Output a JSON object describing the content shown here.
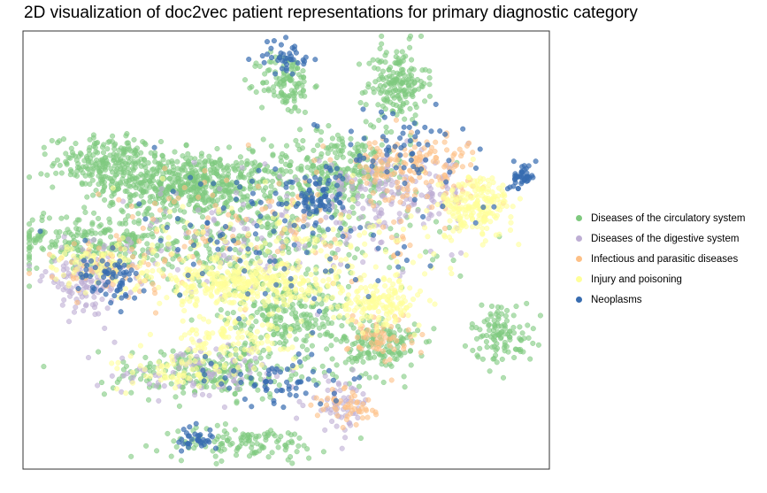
{
  "chart_data": {
    "type": "scatter",
    "title": "2D visualization of doc2vec patient representations for primary diagnostic category",
    "xlabel": "",
    "ylabel": "",
    "axes_visible": false,
    "grid": false,
    "legend_position": "right",
    "xlim": [
      0,
      100
    ],
    "ylim": [
      0,
      100
    ],
    "series": [
      {
        "name": "Diseases of the circulatory system",
        "color": "#7fc97f",
        "clusters": [
          {
            "cx": 32,
            "cy": 65,
            "sx": 8,
            "sy": 3.5,
            "n": 520
          },
          {
            "cx": 16,
            "cy": 70,
            "sx": 5,
            "sy": 3,
            "n": 220
          },
          {
            "cx": 71,
            "cy": 88,
            "sx": 2.8,
            "sy": 4.5,
            "n": 180
          },
          {
            "cx": 50,
            "cy": 88,
            "sx": 2.5,
            "sy": 3.5,
            "n": 110
          },
          {
            "cx": 60,
            "cy": 68,
            "sx": 7,
            "sy": 4.5,
            "n": 300
          },
          {
            "cx": 15,
            "cy": 52,
            "sx": 9,
            "sy": 3.5,
            "n": 260
          },
          {
            "cx": 50,
            "cy": 35,
            "sx": 6,
            "sy": 4,
            "n": 220
          },
          {
            "cx": 68,
            "cy": 28,
            "sx": 3.5,
            "sy": 3.5,
            "n": 150
          },
          {
            "cx": 91,
            "cy": 31,
            "sx": 3,
            "sy": 3.5,
            "n": 110
          },
          {
            "cx": 42,
            "cy": 6,
            "sx": 8,
            "sy": 1.8,
            "n": 120
          },
          {
            "cx": 36,
            "cy": 22,
            "sx": 10,
            "sy": 3,
            "n": 230
          },
          {
            "cx": 45,
            "cy": 52,
            "sx": 15,
            "sy": 6,
            "n": 300
          }
        ]
      },
      {
        "name": "Diseases of the digestive system",
        "color": "#beaed4",
        "clusters": [
          {
            "cx": 12,
            "cy": 43,
            "sx": 4,
            "sy": 3.5,
            "n": 120
          },
          {
            "cx": 70,
            "cy": 63,
            "sx": 8,
            "sy": 4,
            "n": 170
          },
          {
            "cx": 35,
            "cy": 22,
            "sx": 9,
            "sy": 3,
            "n": 90
          },
          {
            "cx": 60,
            "cy": 15,
            "sx": 3,
            "sy": 3,
            "n": 60
          },
          {
            "cx": 45,
            "cy": 52,
            "sx": 14,
            "sy": 6,
            "n": 120
          }
        ]
      },
      {
        "name": "Infectious and parasitic diseases",
        "color": "#fdc086",
        "clusters": [
          {
            "cx": 73,
            "cy": 69,
            "sx": 7,
            "sy": 4,
            "n": 170
          },
          {
            "cx": 68,
            "cy": 30,
            "sx": 3,
            "sy": 3,
            "n": 60
          },
          {
            "cx": 18,
            "cy": 46,
            "sx": 6,
            "sy": 3,
            "n": 60
          },
          {
            "cx": 62,
            "cy": 14,
            "sx": 3,
            "sy": 2.5,
            "n": 50
          },
          {
            "cx": 45,
            "cy": 55,
            "sx": 14,
            "sy": 7,
            "n": 110
          }
        ]
      },
      {
        "name": "Injury and poisoning",
        "color": "#ffff99",
        "clusters": [
          {
            "cx": 42,
            "cy": 42,
            "sx": 9,
            "sy": 2.3,
            "n": 330
          },
          {
            "cx": 86,
            "cy": 60,
            "sx": 3.5,
            "sy": 3.5,
            "n": 200
          },
          {
            "cx": 68,
            "cy": 38,
            "sx": 4,
            "sy": 2.5,
            "n": 140
          },
          {
            "cx": 40,
            "cy": 30,
            "sx": 6,
            "sy": 2.5,
            "n": 110
          },
          {
            "cx": 14,
            "cy": 47,
            "sx": 5,
            "sy": 2.5,
            "n": 80
          },
          {
            "cx": 30,
            "cy": 22,
            "sx": 6,
            "sy": 2,
            "n": 70
          },
          {
            "cx": 52,
            "cy": 50,
            "sx": 14,
            "sy": 7,
            "n": 160
          }
        ]
      },
      {
        "name": "Neoplasms",
        "color": "#386cb0",
        "clusters": [
          {
            "cx": 95,
            "cy": 67,
            "sx": 1.2,
            "sy": 1.5,
            "n": 45
          },
          {
            "cx": 56,
            "cy": 62,
            "sx": 2.5,
            "sy": 3,
            "n": 70
          },
          {
            "cx": 17,
            "cy": 43,
            "sx": 3,
            "sy": 3,
            "n": 60
          },
          {
            "cx": 50,
            "cy": 94,
            "sx": 2.5,
            "sy": 2,
            "n": 40
          },
          {
            "cx": 33,
            "cy": 7,
            "sx": 2,
            "sy": 1.5,
            "n": 35
          },
          {
            "cx": 49,
            "cy": 20,
            "sx": 6,
            "sy": 3,
            "n": 60
          },
          {
            "cx": 45,
            "cy": 54,
            "sx": 15,
            "sy": 8,
            "n": 110
          },
          {
            "cx": 70,
            "cy": 74,
            "sx": 7,
            "sy": 4,
            "n": 60
          }
        ]
      }
    ]
  }
}
